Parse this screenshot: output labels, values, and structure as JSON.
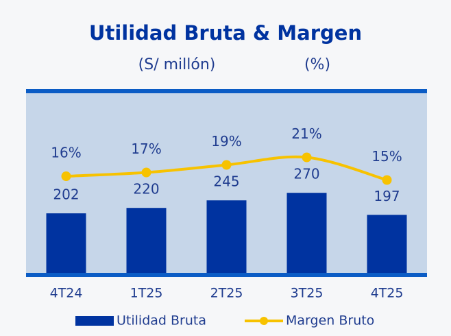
{
  "chart_data": {
    "type": "bar",
    "title": "Utilidad Bruta & Margen",
    "y_label": "(S/ millón)",
    "y2_label": "(%)",
    "categories": [
      "4T24",
      "1T25",
      "2T25",
      "3T25",
      "4T25"
    ],
    "series": [
      {
        "name": "Utilidad Bruta",
        "type": "bar",
        "color": "#0033a0",
        "values": [
          202,
          220,
          245,
          270,
          197
        ]
      },
      {
        "name": "Margen Bruto",
        "type": "line",
        "axis": "y2",
        "color": "#f7c200",
        "values": [
          16,
          17,
          19,
          21,
          15
        ],
        "value_labels": [
          "16%",
          "17%",
          "19%",
          "21%",
          "15%"
        ]
      }
    ],
    "ylim": [
      0,
      600
    ],
    "y2lim": [
      -10,
      38
    ],
    "legend": "bottom"
  }
}
